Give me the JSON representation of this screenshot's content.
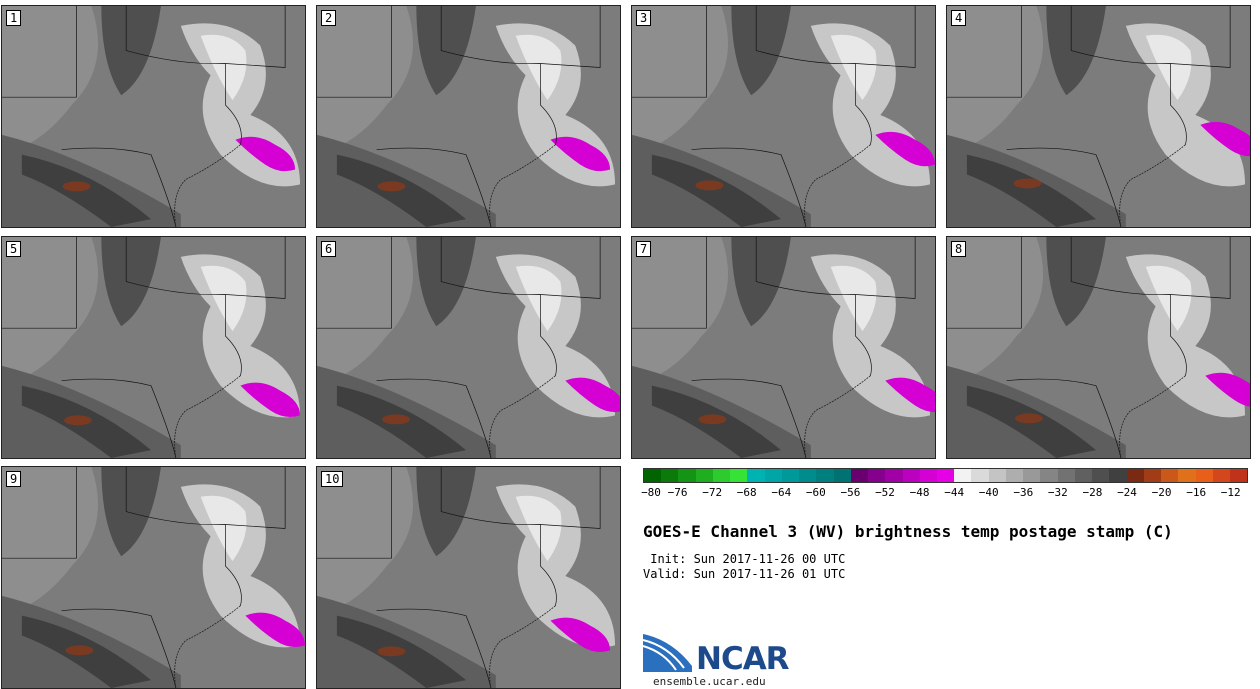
{
  "panels": [
    {
      "label": "1"
    },
    {
      "label": "2"
    },
    {
      "label": "3"
    },
    {
      "label": "4"
    },
    {
      "label": "5"
    },
    {
      "label": "6"
    },
    {
      "label": "7"
    },
    {
      "label": "8"
    },
    {
      "label": "9"
    },
    {
      "label": "10"
    }
  ],
  "colorbar": {
    "colors": [
      "#006400",
      "#0b7a0b",
      "#149414",
      "#1fae1f",
      "#2ecb2e",
      "#37e237",
      "#00b3b3",
      "#00a6a6",
      "#009999",
      "#008c8c",
      "#007f7f",
      "#007272",
      "#6a0070",
      "#85008c",
      "#a000a6",
      "#bb00c0",
      "#d400d4",
      "#e600e6",
      "#f2f2f2",
      "#dadada",
      "#c4c4c4",
      "#aeaeae",
      "#999999",
      "#858585",
      "#727272",
      "#606060",
      "#4f4f4f",
      "#404040",
      "#7a2a12",
      "#a23c16",
      "#c9581a",
      "#e0701a",
      "#e85f1a",
      "#d4461c",
      "#c0321a"
    ],
    "ticks": [
      "−80",
      "−76",
      "−72",
      "−68",
      "−64",
      "−60",
      "−56",
      "−52",
      "−48",
      "−44",
      "−40",
      "−36",
      "−32",
      "−28",
      "−24",
      "−20",
      "−16",
      "−12"
    ]
  },
  "title": "GOES-E Channel 3 (WV) brightness temp postage stamp (C)",
  "init": " Init: Sun 2017-11-26 00 UTC",
  "valid": "Valid: Sun 2017-11-26 01 UTC",
  "logo": {
    "text": "NCAR",
    "url": "ensemble.ucar.edu"
  }
}
